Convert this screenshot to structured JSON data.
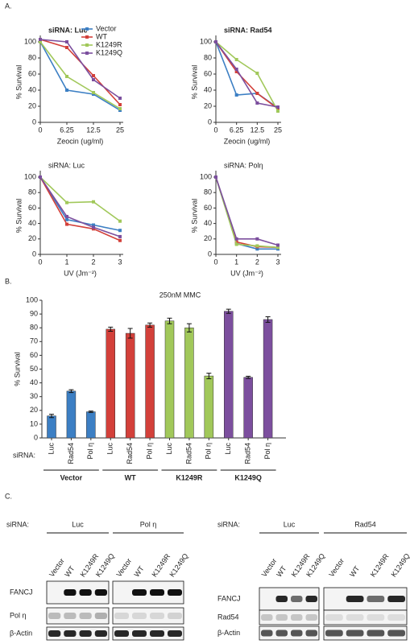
{
  "panel_labels": [
    "A.",
    "B.",
    "C."
  ],
  "chart_data": [
    {
      "type": "line",
      "title": "siRNA: Luc",
      "x_label": "Zeocin (ug/ml)",
      "y_label": "% Survival",
      "categories": [
        "0",
        "6.25",
        "12.5",
        "25"
      ],
      "ylim": [
        0,
        100
      ],
      "yticks": [
        0,
        20,
        40,
        60,
        80,
        100
      ],
      "legend": "upper right",
      "series": [
        {
          "name": "Vector",
          "color": "#3c7fc4",
          "values": [
            100,
            40,
            35,
            15
          ]
        },
        {
          "name": "WT",
          "color": "#d3403a",
          "values": [
            103,
            93,
            58,
            22
          ]
        },
        {
          "name": "K1249R",
          "color": "#a1c85a",
          "values": [
            100,
            57,
            37,
            17
          ]
        },
        {
          "name": "K1249Q",
          "color": "#7c4f9e",
          "values": [
            103,
            100,
            53,
            30
          ]
        }
      ]
    },
    {
      "type": "line",
      "title": "siRNA: Rad54",
      "x_label": "Zeocin (ug/ml)",
      "y_label": "% Survival",
      "categories": [
        "0",
        "6.25",
        "12.5",
        "25"
      ],
      "ylim": [
        0,
        100
      ],
      "yticks": [
        0,
        20,
        40,
        60,
        80,
        100
      ],
      "series": [
        {
          "color": "#3c7fc4",
          "values": [
            100,
            34,
            36,
            18
          ]
        },
        {
          "color": "#d3403a",
          "values": [
            100,
            63,
            36,
            17
          ]
        },
        {
          "color": "#a1c85a",
          "values": [
            100,
            78,
            61,
            14
          ]
        },
        {
          "color": "#7c4f9e",
          "values": [
            100,
            66,
            24,
            19
          ]
        }
      ]
    },
    {
      "type": "line",
      "title": "siRNA: Luc",
      "x_label": "UV (Jm⁻²)",
      "y_label": "% Survival",
      "x": [
        0,
        1,
        2,
        3
      ],
      "xlim": [
        0,
        3
      ],
      "xticks": [
        0,
        1,
        2,
        3
      ],
      "ylim": [
        0,
        100
      ],
      "yticks": [
        0,
        20,
        40,
        60,
        80,
        100
      ],
      "series": [
        {
          "color": "#3c7fc4",
          "values": [
            100,
            45,
            38,
            31
          ]
        },
        {
          "color": "#d3403a",
          "values": [
            100,
            39,
            33,
            18
          ]
        },
        {
          "color": "#a1c85a",
          "values": [
            100,
            67,
            68,
            43
          ]
        },
        {
          "color": "#7c4f9e",
          "values": [
            100,
            49,
            35,
            23
          ]
        }
      ]
    },
    {
      "type": "line",
      "title": "siRNA: Polη",
      "x_label": "UV (Jm⁻²)",
      "y_label": "% Survival",
      "x": [
        0,
        1,
        2,
        3
      ],
      "xlim": [
        0,
        3
      ],
      "xticks": [
        0,
        1,
        2,
        3
      ],
      "ylim": [
        0,
        100
      ],
      "yticks": [
        0,
        20,
        40,
        60,
        80,
        100
      ],
      "series": [
        {
          "color": "#3c7fc4",
          "values": [
            100,
            14,
            7,
            7
          ]
        },
        {
          "color": "#d3403a",
          "values": [
            100,
            16,
            10,
            9
          ]
        },
        {
          "color": "#a1c85a",
          "values": [
            100,
            13,
            11,
            9
          ]
        },
        {
          "color": "#7c4f9e",
          "values": [
            100,
            20,
            20,
            12
          ]
        }
      ]
    },
    {
      "type": "bar",
      "title": "250nM MMC",
      "y_label": "% Survival",
      "category_label": "siRNA:",
      "categories": [
        "Luc",
        "Rad54",
        "Pol η"
      ],
      "ylim": [
        0,
        100
      ],
      "yticks": [
        0,
        10,
        20,
        30,
        40,
        50,
        60,
        70,
        80,
        90,
        100
      ],
      "series": [
        {
          "name": "Vector",
          "color": "#3c7fc4",
          "values": [
            16,
            34,
            19
          ],
          "errors": [
            1.2,
            1,
            0.5
          ]
        },
        {
          "name": "WT",
          "color": "#d3403a",
          "values": [
            79,
            76,
            82
          ],
          "errors": [
            1.5,
            3.5,
            1.5
          ]
        },
        {
          "name": "K1249R",
          "color": "#a1c85a",
          "values": [
            85,
            80,
            45
          ],
          "errors": [
            2,
            3,
            2
          ]
        },
        {
          "name": "K1249Q",
          "color": "#7c4f9e",
          "values": [
            92,
            44,
            86
          ],
          "errors": [
            1.5,
            0.8,
            2
          ]
        }
      ]
    }
  ],
  "blots": [
    {
      "sirna_label": "siRNA:",
      "groups": [
        {
          "name": "Luc",
          "lanes": [
            "Vector",
            "WT",
            "K1249R",
            "K1249Q"
          ]
        },
        {
          "name": "Pol η",
          "lanes": [
            "Vector",
            "WT",
            "K1249R",
            "K1249Q"
          ]
        }
      ],
      "rows": [
        "FANCJ",
        "Pol η",
        "β-Actin"
      ]
    },
    {
      "sirna_label": "siRNA:",
      "groups": [
        {
          "name": "Luc",
          "lanes": [
            "Vector",
            "WT",
            "K1249R",
            "K1249Q"
          ]
        },
        {
          "name": "Rad54",
          "lanes": [
            "Vector",
            "WT",
            "K1249R",
            "K1249Q"
          ]
        }
      ],
      "rows": [
        "FANCJ",
        "Rad54",
        "β-Actin"
      ]
    }
  ]
}
